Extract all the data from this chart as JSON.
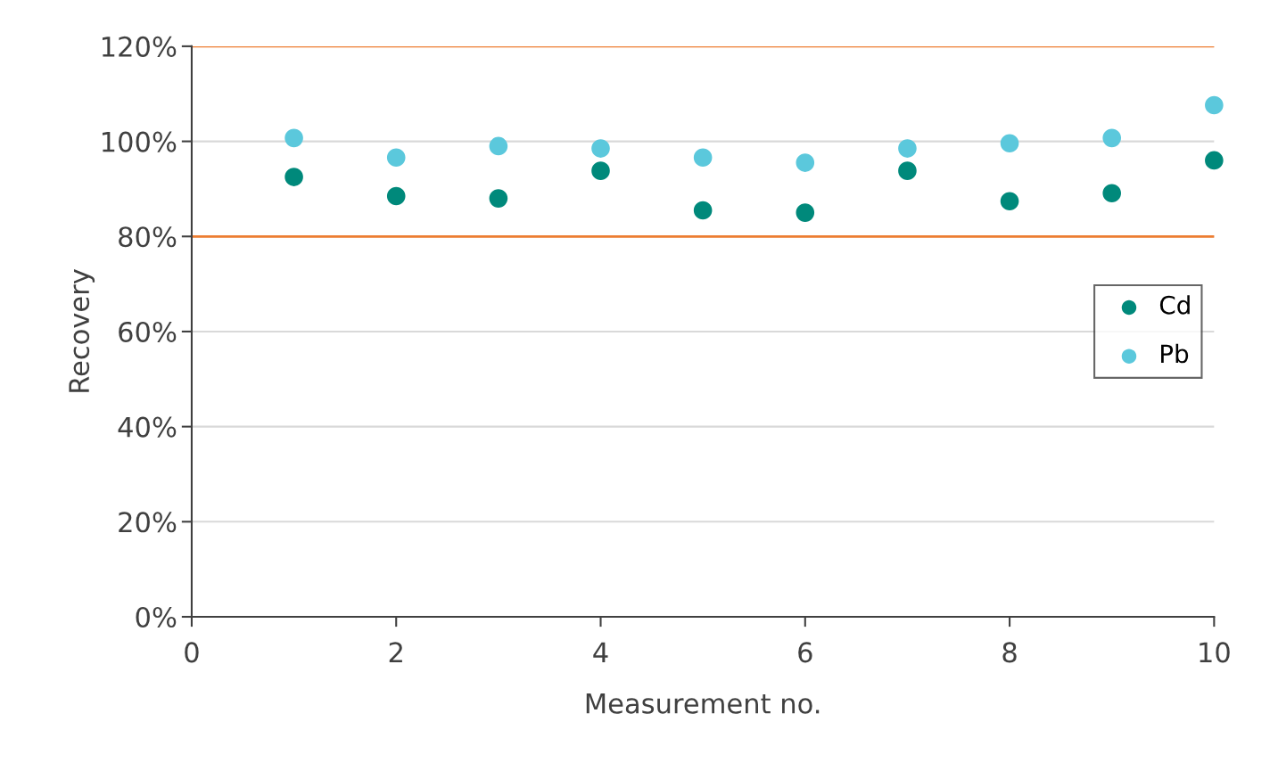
{
  "chart_data": {
    "type": "scatter",
    "xlabel": "Measurement no.",
    "ylabel": "Recovery",
    "x": [
      1,
      2,
      3,
      4,
      5,
      6,
      7,
      8,
      9,
      10
    ],
    "series": [
      {
        "name": "Cd",
        "color": "#00897b",
        "values": [
          92.5,
          88.5,
          88.0,
          93.8,
          85.5,
          85.0,
          93.8,
          87.4,
          89.1,
          96.0
        ]
      },
      {
        "name": "Pb",
        "color": "#5bc8dc",
        "values": [
          100.7,
          96.6,
          99.0,
          98.5,
          96.6,
          95.5,
          98.5,
          99.6,
          100.7,
          107.6
        ]
      }
    ],
    "xlim": [
      0,
      10
    ],
    "xticks": [
      0,
      2,
      4,
      6,
      8,
      10
    ],
    "ylim": [
      0,
      120
    ],
    "yticks": [
      {
        "value": 0,
        "label": "0%"
      },
      {
        "value": 20,
        "label": "20%"
      },
      {
        "value": 40,
        "label": "40%"
      },
      {
        "value": 60,
        "label": "60%"
      },
      {
        "value": 80,
        "label": "80%"
      },
      {
        "value": 100,
        "label": "100%"
      },
      {
        "value": 120,
        "label": "120%"
      }
    ],
    "ref_lines": [
      {
        "axis": "y",
        "value": 80,
        "color": "#ed7d31"
      },
      {
        "axis": "y",
        "value": 120,
        "color": "#ed7d31"
      }
    ],
    "grid": "y",
    "legend": "center right",
    "marker": "circle"
  }
}
